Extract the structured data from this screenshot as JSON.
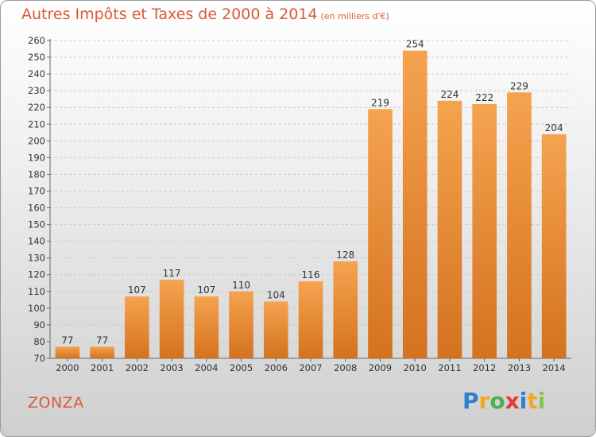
{
  "header": {
    "title": "Autres Impôts et Taxes de 2000 à 2014",
    "subtitle": "(en milliers d'€)"
  },
  "footer": {
    "commune": "ZONZA",
    "logo_letters": [
      "P",
      "r",
      "o",
      "x",
      "i",
      "t",
      "i"
    ],
    "logo_colors": [
      "#2e7fcf",
      "#f5a623",
      "#4caf50",
      "#e53935",
      "#2e7fcf",
      "#f5a623",
      "#8bc34a"
    ]
  },
  "colors": {
    "title": "#dc5a37",
    "bar_light": "#f5a34f",
    "bar_dark": "#d4721f"
  },
  "chart_data": {
    "type": "bar",
    "title": "Autres Impôts et Taxes de 2000 à 2014",
    "categories": [
      "2000",
      "2001",
      "2002",
      "2003",
      "2004",
      "2005",
      "2006",
      "2007",
      "2008",
      "2009",
      "2010",
      "2011",
      "2012",
      "2013",
      "2014"
    ],
    "values": [
      77,
      77,
      107,
      117,
      107,
      110,
      104,
      116,
      128,
      219,
      254,
      224,
      222,
      229,
      204
    ],
    "data_labels": [
      "77",
      "77",
      "107",
      "117",
      "107",
      "110",
      "104",
      "116",
      "128",
      "219",
      "254",
      "224",
      "222",
      "229",
      "204"
    ],
    "yticks": [
      "70",
      "80",
      "90",
      "100",
      "110",
      "120",
      "130",
      "140",
      "150",
      "160",
      "170",
      "180",
      "190",
      "200",
      "210",
      "220",
      "230",
      "240",
      "250",
      "260"
    ],
    "ylim": [
      70,
      260
    ],
    "grid": true,
    "xlabel": "",
    "ylabel": ""
  }
}
